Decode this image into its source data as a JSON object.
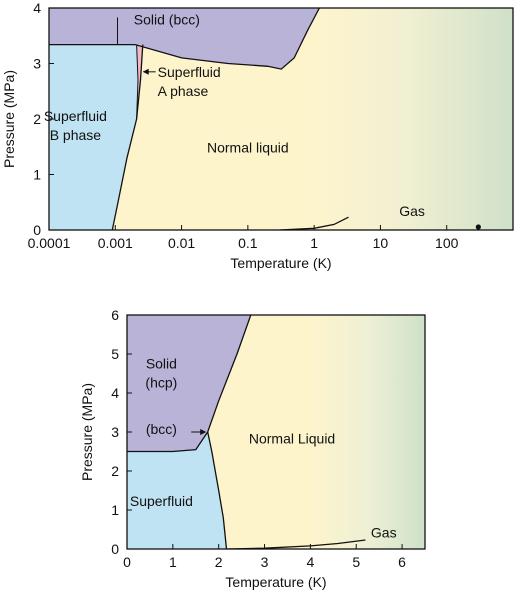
{
  "colors": {
    "solid": "#b9b3d8",
    "superfluid": "#bfe3f2",
    "superfluid_a": "#f2b8c8",
    "liquid": "#fdf4cc",
    "gas": "#cfe1c9",
    "line": "#111111",
    "frame": "#111111"
  },
  "chart_data": [
    {
      "type": "area",
      "title": "",
      "xlabel": "Temperature (K)",
      "ylabel": "Pressure (MPa)",
      "x_scale": "log",
      "xlim": [
        0.0001,
        1000
      ],
      "ylim": [
        0,
        4
      ],
      "x_ticks": [
        0.0001,
        0.001,
        0.01,
        0.1,
        1,
        10,
        100
      ],
      "x_tick_labels": [
        "0.0001",
        "0.001",
        "0.01",
        "0.1",
        "1",
        "10",
        "100"
      ],
      "y_ticks": [
        0,
        1,
        2,
        3,
        4
      ],
      "y_tick_labels": [
        "0",
        "1",
        "2",
        "3",
        "4"
      ],
      "grid": false,
      "regions": [
        {
          "id": "solid",
          "label": "Solid (bcc)",
          "label_at": [
            0.006,
            3.7
          ]
        },
        {
          "id": "superfluid_b",
          "label": "Superfluid\nB phase",
          "label_at": [
            0.00025,
            1.8
          ]
        },
        {
          "id": "superfluid_a",
          "label": "Superfluid\nA phase",
          "label_at": [
            0.009,
            2.75
          ]
        },
        {
          "id": "liquid",
          "label": "Normal liquid",
          "label_at": [
            0.1,
            1.4
          ]
        },
        {
          "id": "gas",
          "label": "Gas",
          "label_at": [
            30,
            0.25
          ]
        }
      ],
      "boundaries": {
        "melting_curve": [
          [
            0.0001,
            3.34
          ],
          [
            0.001,
            3.34
          ],
          [
            0.002,
            3.34
          ],
          [
            0.01,
            3.1
          ],
          [
            0.05,
            3.0
          ],
          [
            0.2,
            2.95
          ],
          [
            0.32,
            2.9
          ],
          [
            0.5,
            3.1
          ],
          [
            0.8,
            3.6
          ],
          [
            1.2,
            4.0
          ]
        ],
        "superfluid_b_boundary": [
          [
            0.0009,
            0.0
          ],
          [
            0.0011,
            0.5
          ],
          [
            0.0015,
            1.3
          ],
          [
            0.0021,
            2.0
          ],
          [
            0.0024,
            2.7
          ],
          [
            0.0026,
            3.34
          ]
        ],
        "a_phase_left_edge": [
          [
            0.0021,
            2.0
          ],
          [
            0.0022,
            2.7
          ],
          [
            0.0021,
            3.34
          ]
        ],
        "bcc_line": [
          [
            0.00108,
            3.34
          ],
          [
            0.00108,
            3.83
          ]
        ],
        "vaporization_curve": [
          [
            0.3,
            0.0
          ],
          [
            1.0,
            0.03
          ],
          [
            2.0,
            0.1
          ],
          [
            3.3,
            0.23
          ]
        ]
      },
      "critical_point": [
        3.3,
        0.23
      ],
      "marker_point": [
        300,
        0.0
      ],
      "annotations": [
        {
          "text": "A phase arrow",
          "points_to": [
            0.0025,
            2.85
          ]
        }
      ]
    },
    {
      "type": "area",
      "title": "",
      "xlabel": "Temperature (K)",
      "ylabel": "Pressure (MPa)",
      "x_scale": "linear",
      "xlim": [
        0,
        6.5
      ],
      "ylim": [
        0,
        6
      ],
      "x_ticks": [
        0,
        1,
        2,
        3,
        4,
        5,
        6
      ],
      "x_tick_labels": [
        "0",
        "1",
        "2",
        "3",
        "4",
        "5",
        "6"
      ],
      "y_ticks": [
        0,
        1,
        2,
        3,
        4,
        5,
        6
      ],
      "y_tick_labels": [
        "0",
        "1",
        "2",
        "3",
        "4",
        "5",
        "6"
      ],
      "grid": false,
      "regions": [
        {
          "id": "solid_hcp",
          "label": "Solid\n(hcp)",
          "label_at": [
            0.75,
            4.4
          ]
        },
        {
          "id": "bcc",
          "label": "(bcc)",
          "label_at": [
            0.75,
            2.95
          ]
        },
        {
          "id": "superfluid",
          "label": "Superfluid",
          "label_at": [
            0.75,
            1.1
          ]
        },
        {
          "id": "liquid",
          "label": "Normal Liquid",
          "label_at": [
            3.6,
            2.7
          ]
        },
        {
          "id": "gas",
          "label": "Gas",
          "label_at": [
            5.6,
            0.3
          ]
        }
      ],
      "boundaries": {
        "melting_curve": [
          [
            0.0,
            2.5
          ],
          [
            1.0,
            2.5
          ],
          [
            1.5,
            2.55
          ],
          [
            1.76,
            3.0
          ],
          [
            2.0,
            3.8
          ],
          [
            2.4,
            5.0
          ],
          [
            2.7,
            6.0
          ]
        ],
        "lambda_line": [
          [
            1.76,
            3.0
          ],
          [
            1.85,
            2.5
          ],
          [
            2.0,
            1.5
          ],
          [
            2.1,
            0.8
          ],
          [
            2.17,
            0.0
          ]
        ],
        "vaporization_curve": [
          [
            2.17,
            0.0
          ],
          [
            3.0,
            0.02
          ],
          [
            4.0,
            0.08
          ],
          [
            4.6,
            0.14
          ],
          [
            5.2,
            0.23
          ]
        ]
      },
      "critical_point": [
        5.2,
        0.23
      ],
      "annotations": [
        {
          "text": "(bcc) arrow",
          "points_to": [
            1.75,
            3.0
          ]
        }
      ]
    }
  ]
}
